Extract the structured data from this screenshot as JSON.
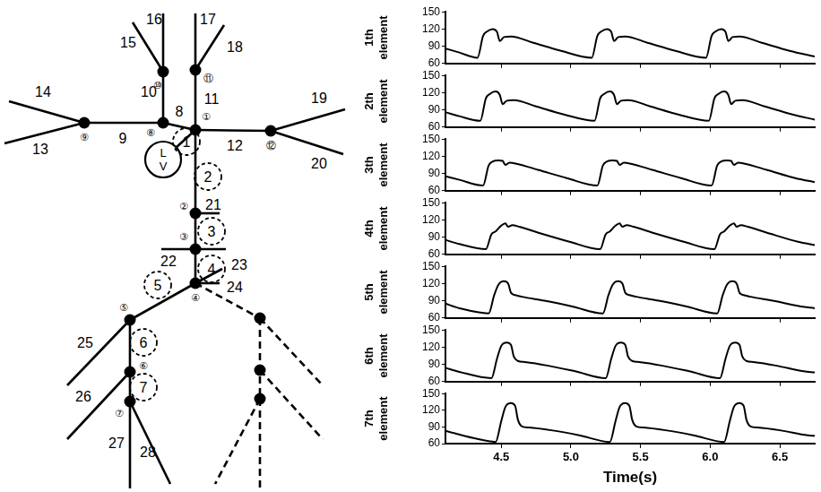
{
  "diagram": {
    "ventricle": [
      "L",
      "V"
    ],
    "nodes": [
      "①",
      "②",
      "③",
      "④",
      "⑤",
      "⑥",
      "⑦",
      "⑧",
      "⑨",
      "⑩",
      "⑪",
      "⑫"
    ],
    "segments": [
      "8",
      "9",
      "10",
      "11",
      "12",
      "13",
      "14",
      "15",
      "16",
      "17",
      "18",
      "19",
      "20",
      "21",
      "22",
      "23",
      "24",
      "25",
      "26",
      "27",
      "28"
    ],
    "elements": [
      "1",
      "2",
      "3",
      "4",
      "5",
      "6",
      "7"
    ]
  },
  "chart_data": [
    {
      "type": "line",
      "ylabel": [
        "1th",
        "element"
      ],
      "color": "#000000",
      "grid": false,
      "tick_labels": "y",
      "xlim": [
        4.1,
        6.75
      ],
      "xticks": [
        4.5,
        {
          "value": 5,
          "label": "5.0"
        },
        5.5,
        {
          "value": 6,
          "label": "6.0"
        },
        6.5
      ],
      "ylim": [
        60,
        150
      ],
      "yticks": [
        60,
        90,
        120,
        150
      ],
      "x": [
        4.1,
        4.2,
        4.33,
        4.37,
        4.4,
        4.44,
        4.47,
        4.49,
        4.52,
        4.57,
        4.73,
        4.93,
        5.15,
        5.19,
        5.22,
        5.26,
        5.29,
        5.31,
        5.34,
        5.39,
        5.55,
        5.75,
        5.97,
        6.01,
        6.04,
        6.08,
        6.11,
        6.13,
        6.16,
        6.21,
        6.37,
        6.57,
        6.75
      ],
      "values": [
        86,
        79,
        70,
        108,
        116,
        120,
        115,
        99,
        106,
        107,
        96,
        82,
        70,
        108,
        116,
        120,
        115,
        99,
        106,
        107,
        96,
        82,
        70,
        108,
        116,
        120,
        115,
        99,
        106,
        107,
        96,
        82,
        72
      ]
    },
    {
      "type": "line",
      "ylabel": [
        "2th",
        "element"
      ],
      "color": "#000000",
      "grid": false,
      "tick_labels": "y",
      "xlim": [
        4.1,
        6.75
      ],
      "xticks": [
        4.5,
        {
          "value": 5,
          "label": "5.0"
        },
        5.5,
        {
          "value": 6,
          "label": "6.0"
        },
        6.5
      ],
      "ylim": [
        60,
        150
      ],
      "yticks": [
        60,
        90,
        120,
        150
      ],
      "x": [
        4.1,
        4.2,
        4.35,
        4.39,
        4.42,
        4.46,
        4.49,
        4.51,
        4.54,
        4.59,
        4.75,
        4.95,
        5.17,
        5.21,
        5.24,
        5.28,
        5.31,
        5.33,
        5.36,
        5.41,
        5.57,
        5.77,
        5.99,
        6.03,
        6.06,
        6.1,
        6.13,
        6.15,
        6.18,
        6.23,
        6.39,
        6.59,
        6.75
      ],
      "values": [
        86,
        79,
        71,
        110,
        118,
        122,
        116,
        100,
        106,
        107,
        96,
        82,
        71,
        110,
        118,
        122,
        116,
        100,
        106,
        107,
        96,
        82,
        71,
        110,
        118,
        122,
        116,
        100,
        106,
        107,
        96,
        82,
        73
      ]
    },
    {
      "type": "line",
      "ylabel": [
        "3th",
        "element"
      ],
      "color": "#000000",
      "grid": false,
      "tick_labels": "y",
      "xlim": [
        4.1,
        6.75
      ],
      "xticks": [
        4.5,
        {
          "value": 5,
          "label": "5.0"
        },
        5.5,
        {
          "value": 6,
          "label": "6.0"
        },
        6.5
      ],
      "ylim": [
        60,
        150
      ],
      "yticks": [
        60,
        90,
        120,
        150
      ],
      "x": [
        4.1,
        4.2,
        4.37,
        4.41,
        4.44,
        4.48,
        4.51,
        4.53,
        4.56,
        4.61,
        4.77,
        4.97,
        5.19,
        5.23,
        5.26,
        5.3,
        5.33,
        5.35,
        5.38,
        5.43,
        5.59,
        5.79,
        6.01,
        6.05,
        6.08,
        6.12,
        6.15,
        6.17,
        6.2,
        6.25,
        6.41,
        6.61,
        6.75
      ],
      "values": [
        85,
        79,
        69,
        104,
        111,
        113,
        112,
        105,
        109,
        107,
        96,
        82,
        69,
        104,
        111,
        113,
        112,
        105,
        109,
        107,
        96,
        82,
        69,
        104,
        111,
        113,
        112,
        105,
        109,
        107,
        96,
        82,
        75
      ]
    },
    {
      "type": "line",
      "ylabel": [
        "4th",
        "element"
      ],
      "color": "#000000",
      "grid": false,
      "tick_labels": "y",
      "xlim": [
        4.1,
        6.75
      ],
      "xticks": [
        4.5,
        {
          "value": 5,
          "label": "5.0"
        },
        5.5,
        {
          "value": 6,
          "label": "6.0"
        },
        6.5
      ],
      "ylim": [
        60,
        150
      ],
      "yticks": [
        60,
        90,
        120,
        150
      ],
      "x": [
        4.1,
        4.2,
        4.39,
        4.43,
        4.46,
        4.5,
        4.53,
        4.55,
        4.58,
        4.63,
        4.79,
        4.99,
        5.21,
        5.25,
        5.28,
        5.32,
        5.35,
        5.37,
        5.4,
        5.45,
        5.61,
        5.81,
        6.03,
        6.07,
        6.1,
        6.14,
        6.17,
        6.19,
        6.22,
        6.27,
        6.43,
        6.63,
        6.75
      ],
      "values": [
        85,
        78,
        69,
        95,
        100,
        110,
        114,
        108,
        111,
        108,
        96,
        82,
        69,
        95,
        100,
        110,
        114,
        108,
        111,
        108,
        96,
        82,
        69,
        95,
        100,
        110,
        114,
        108,
        111,
        108,
        96,
        82,
        76
      ]
    },
    {
      "type": "line",
      "ylabel": [
        "5th",
        "element"
      ],
      "color": "#000000",
      "grid": false,
      "tick_labels": "y",
      "xlim": [
        4.1,
        6.75
      ],
      "xticks": [
        4.5,
        {
          "value": 5,
          "label": "5.0"
        },
        5.5,
        {
          "value": 6,
          "label": "6.0"
        },
        6.5
      ],
      "ylim": [
        60,
        150
      ],
      "yticks": [
        60,
        90,
        120,
        150
      ],
      "x": [
        4.1,
        4.2,
        4.41,
        4.45,
        4.48,
        4.52,
        4.55,
        4.57,
        4.6,
        4.65,
        4.81,
        5.01,
        5.23,
        5.27,
        5.3,
        5.34,
        5.37,
        5.39,
        5.42,
        5.47,
        5.63,
        5.83,
        6.05,
        6.09,
        6.12,
        6.16,
        6.19,
        6.21,
        6.24,
        6.29,
        6.45,
        6.65,
        6.75
      ],
      "values": [
        85,
        77,
        68,
        100,
        118,
        124,
        120,
        104,
        100,
        97,
        90,
        80,
        68,
        100,
        118,
        124,
        120,
        104,
        100,
        97,
        90,
        80,
        68,
        100,
        118,
        124,
        120,
        104,
        100,
        97,
        90,
        80,
        77
      ]
    },
    {
      "type": "line",
      "ylabel": [
        "6th",
        "element"
      ],
      "color": "#000000",
      "grid": false,
      "tick_labels": "y",
      "xlim": [
        4.1,
        6.75
      ],
      "xticks": [
        4.5,
        {
          "value": 5,
          "label": "5.0"
        },
        5.5,
        {
          "value": 6,
          "label": "6.0"
        },
        6.5
      ],
      "ylim": [
        60,
        150
      ],
      "yticks": [
        60,
        90,
        120,
        150
      ],
      "x": [
        4.1,
        4.2,
        4.43,
        4.47,
        4.5,
        4.54,
        4.57,
        4.59,
        4.62,
        4.67,
        4.83,
        5.03,
        5.25,
        5.29,
        5.32,
        5.36,
        5.39,
        5.41,
        5.44,
        5.49,
        5.65,
        5.85,
        6.07,
        6.11,
        6.14,
        6.18,
        6.21,
        6.23,
        6.26,
        6.31,
        6.47,
        6.67,
        6.75
      ],
      "values": [
        84,
        77,
        66,
        100,
        122,
        128,
        124,
        104,
        96,
        94,
        88,
        78,
        66,
        100,
        122,
        128,
        124,
        104,
        96,
        94,
        88,
        78,
        66,
        100,
        122,
        128,
        124,
        104,
        96,
        94,
        88,
        78,
        76
      ]
    },
    {
      "type": "line",
      "ylabel": [
        "7th",
        "element"
      ],
      "xlabel": "Time(s)",
      "color": "#000000",
      "grid": false,
      "xlim": [
        4.1,
        6.75
      ],
      "xticks": [
        4.5,
        {
          "value": 5,
          "label": "5.0"
        },
        5.5,
        {
          "value": 6,
          "label": "6.0"
        },
        6.5
      ],
      "ylim": [
        60,
        150
      ],
      "yticks": [
        60,
        90,
        120,
        150
      ],
      "x": [
        4.1,
        4.3,
        4.46,
        4.5,
        4.53,
        4.57,
        4.6,
        4.62,
        4.65,
        4.7,
        4.86,
        5.06,
        5.28,
        5.32,
        5.35,
        5.39,
        5.42,
        5.44,
        5.47,
        5.52,
        5.68,
        5.88,
        6.1,
        6.14,
        6.17,
        6.21,
        6.24,
        6.26,
        6.29,
        6.34,
        6.5,
        6.7,
        6.75
      ],
      "values": [
        83,
        70,
        63,
        100,
        126,
        133,
        128,
        103,
        91,
        89,
        84,
        75,
        63,
        100,
        126,
        133,
        128,
        103,
        91,
        89,
        84,
        75,
        63,
        100,
        126,
        133,
        128,
        103,
        91,
        89,
        84,
        75,
        74
      ]
    }
  ]
}
